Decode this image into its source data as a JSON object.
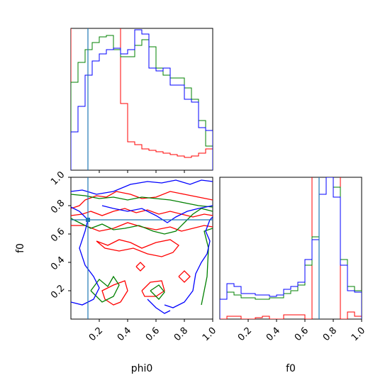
{
  "chart_data": {
    "type": "corner",
    "parameters": [
      "phi0",
      "f0"
    ],
    "colors": {
      "run_red": "#ff0000",
      "run_green": "#008000",
      "run_blue": "#0000ff",
      "truth_line": "#1f77b4"
    },
    "truth": {
      "phi0": 0.12,
      "f0": 0.7
    },
    "panels": {
      "phi0_hist": {
        "type": "step-histogram",
        "xlim": [
          0,
          1
        ],
        "bin_edges": [
          0.0,
          0.05,
          0.1,
          0.15,
          0.2,
          0.25,
          0.3,
          0.35,
          0.4,
          0.45,
          0.5,
          0.55,
          0.6,
          0.65,
          0.7,
          0.75,
          0.8,
          0.85,
          0.9,
          0.95,
          1.0
        ],
        "series": [
          {
            "color": "red",
            "values": [
              1.5,
              1.5,
              1.5,
              1.5,
              1.5,
              1.5,
              1.5,
              0.47,
              0.2,
              0.18,
              0.15,
              0.14,
              0.13,
              0.12,
              0.11,
              0.1,
              0.09,
              0.1,
              0.12,
              0.15
            ]
          },
          {
            "color": "green",
            "values": [
              0.62,
              0.76,
              0.85,
              0.9,
              0.94,
              0.95,
              0.85,
              0.8,
              0.8,
              0.88,
              0.92,
              0.87,
              0.72,
              0.67,
              0.65,
              0.65,
              0.58,
              0.5,
              0.35,
              0.17
            ]
          },
          {
            "color": "blue",
            "values": [
              0.27,
              0.45,
              0.67,
              0.77,
              0.82,
              0.85,
              0.86,
              0.82,
              0.85,
              0.99,
              0.96,
              0.72,
              0.7,
              0.72,
              0.6,
              0.6,
              0.5,
              0.48,
              0.3,
              0.28
            ]
          }
        ],
        "xticks": [
          0.2,
          0.4,
          0.6,
          0.8
        ]
      },
      "f0_hist": {
        "type": "step-histogram",
        "xlim": [
          0,
          1
        ],
        "bin_edges": [
          0.0,
          0.05,
          0.1,
          0.15,
          0.2,
          0.25,
          0.3,
          0.35,
          0.4,
          0.45,
          0.5,
          0.55,
          0.6,
          0.65,
          0.7,
          0.75,
          0.8,
          0.85,
          0.9,
          0.95,
          1.0
        ],
        "series": [
          {
            "color": "red",
            "values": [
              0.0,
              0.02,
              0.02,
              0.0,
              0.0,
              0.01,
              0.02,
              0.0,
              0.0,
              0.03,
              0.03,
              0.03,
              0.0,
              1.5,
              1.5,
              1.5,
              1.5,
              0.0,
              0.05,
              0.02
            ]
          },
          {
            "color": "green",
            "values": [
              0.14,
              0.19,
              0.17,
              0.15,
              0.15,
              0.14,
              0.14,
              0.15,
              0.15,
              0.18,
              0.2,
              0.24,
              0.38,
              0.58,
              1.06,
              1.1,
              0.93,
              0.42,
              0.23,
              0.2
            ]
          },
          {
            "color": "blue",
            "values": [
              0.14,
              0.25,
              0.23,
              0.18,
              0.18,
              0.17,
              0.17,
              0.16,
              0.17,
              0.21,
              0.23,
              0.26,
              0.42,
              0.56,
              0.88,
              1.0,
              0.86,
              0.38,
              0.2,
              0.19
            ]
          }
        ],
        "xticks": [
          0.2,
          0.4,
          0.6,
          0.8,
          1.0
        ],
        "xlabel": "f0"
      },
      "joint": {
        "type": "contour",
        "xlim": [
          0,
          1
        ],
        "ylim": [
          0,
          1
        ],
        "xlabel": "phi0",
        "ylabel": "f0",
        "xticks": [
          0.2,
          0.4,
          0.6,
          0.8,
          1.0
        ],
        "yticks": [
          0.2,
          0.4,
          0.6,
          0.8,
          1.0
        ],
        "contours": [
          {
            "color": "red",
            "path": [
              [
                0,
                0.78
              ],
              [
                0.06,
                0.8
              ],
              [
                0.1,
                0.84
              ],
              [
                0.18,
                0.87
              ],
              [
                0.25,
                0.86
              ],
              [
                0.32,
                0.9
              ],
              [
                0.42,
                0.88
              ],
              [
                0.5,
                0.85
              ],
              [
                0.6,
                0.86
              ],
              [
                0.7,
                0.9
              ],
              [
                0.8,
                0.88
              ],
              [
                0.9,
                0.86
              ],
              [
                1.0,
                0.84
              ]
            ]
          },
          {
            "color": "red",
            "path": [
              [
                0,
                0.73
              ],
              [
                0.08,
                0.74
              ],
              [
                0.14,
                0.76
              ],
              [
                0.22,
                0.73
              ],
              [
                0.3,
                0.76
              ],
              [
                0.38,
                0.78
              ],
              [
                0.46,
                0.75
              ],
              [
                0.54,
                0.77
              ],
              [
                0.62,
                0.74
              ],
              [
                0.7,
                0.76
              ],
              [
                0.78,
                0.74
              ],
              [
                0.86,
                0.72
              ],
              [
                0.94,
                0.74
              ],
              [
                1.0,
                0.73
              ]
            ]
          },
          {
            "color": "red",
            "path": [
              [
                0,
                0.66
              ],
              [
                0.1,
                0.66
              ],
              [
                0.2,
                0.62
              ],
              [
                0.3,
                0.64
              ],
              [
                0.4,
                0.68
              ],
              [
                0.5,
                0.65
              ],
              [
                0.6,
                0.63
              ],
              [
                0.7,
                0.65
              ],
              [
                0.78,
                0.62
              ],
              [
                0.86,
                0.64
              ],
              [
                0.94,
                0.66
              ],
              [
                1.0,
                0.65
              ]
            ]
          },
          {
            "color": "red",
            "path": [
              [
                0.18,
                0.55
              ],
              [
                0.26,
                0.52
              ],
              [
                0.34,
                0.56
              ],
              [
                0.42,
                0.54
              ],
              [
                0.5,
                0.5
              ],
              [
                0.6,
                0.54
              ],
              [
                0.7,
                0.56
              ],
              [
                0.76,
                0.52
              ],
              [
                0.72,
                0.47
              ],
              [
                0.64,
                0.44
              ],
              [
                0.54,
                0.46
              ],
              [
                0.44,
                0.5
              ],
              [
                0.34,
                0.48
              ],
              [
                0.24,
                0.5
              ],
              [
                0.18,
                0.55
              ]
            ]
          },
          {
            "color": "red",
            "path": [
              [
                0.35,
                0.12
              ],
              [
                0.4,
                0.2
              ],
              [
                0.38,
                0.27
              ],
              [
                0.3,
                0.24
              ],
              [
                0.22,
                0.2
              ],
              [
                0.24,
                0.14
              ],
              [
                0.3,
                0.1
              ],
              [
                0.35,
                0.12
              ]
            ]
          },
          {
            "color": "red",
            "path": [
              [
                0.5,
                0.2
              ],
              [
                0.56,
                0.26
              ],
              [
                0.64,
                0.27
              ],
              [
                0.66,
                0.2
              ],
              [
                0.6,
                0.16
              ],
              [
                0.52,
                0.16
              ],
              [
                0.5,
                0.2
              ]
            ]
          },
          {
            "color": "red",
            "path": [
              [
                0.76,
                0.3
              ],
              [
                0.8,
                0.26
              ],
              [
                0.84,
                0.3
              ],
              [
                0.8,
                0.34
              ],
              [
                0.76,
                0.3
              ]
            ]
          },
          {
            "color": "red",
            "path": [
              [
                0.46,
                0.37
              ],
              [
                0.49,
                0.34
              ],
              [
                0.52,
                0.37
              ],
              [
                0.49,
                0.4
              ],
              [
                0.46,
                0.37
              ]
            ]
          },
          {
            "color": "green",
            "path": [
              [
                0,
                0.88
              ],
              [
                0.1,
                0.87
              ],
              [
                0.2,
                0.85
              ],
              [
                0.3,
                0.86
              ],
              [
                0.4,
                0.84
              ],
              [
                0.5,
                0.86
              ],
              [
                0.6,
                0.85
              ],
              [
                0.7,
                0.84
              ],
              [
                0.8,
                0.82
              ],
              [
                0.9,
                0.8
              ],
              [
                1.0,
                0.79
              ]
            ]
          },
          {
            "color": "green",
            "path": [
              [
                0,
                0.71
              ],
              [
                0.06,
                0.68
              ],
              [
                0.14,
                0.64
              ],
              [
                0.22,
                0.67
              ],
              [
                0.3,
                0.63
              ],
              [
                0.38,
                0.64
              ],
              [
                0.48,
                0.66
              ],
              [
                0.58,
                0.62
              ],
              [
                0.66,
                0.6
              ],
              [
                0.74,
                0.62
              ],
              [
                0.8,
                0.68
              ],
              [
                0.86,
                0.74
              ],
              [
                0.92,
                0.78
              ],
              [
                1.0,
                0.76
              ]
            ]
          },
          {
            "color": "green",
            "path": [
              [
                0.14,
                0.2
              ],
              [
                0.2,
                0.28
              ],
              [
                0.26,
                0.23
              ],
              [
                0.3,
                0.3
              ],
              [
                0.34,
                0.24
              ],
              [
                0.3,
                0.16
              ],
              [
                0.22,
                0.12
              ],
              [
                0.14,
                0.2
              ]
            ]
          },
          {
            "color": "green",
            "path": [
              [
                0.56,
                0.2
              ],
              [
                0.62,
                0.24
              ],
              [
                0.66,
                0.19
              ],
              [
                0.62,
                0.14
              ],
              [
                0.56,
                0.2
              ]
            ]
          },
          {
            "color": "green",
            "path": [
              [
                0.92,
                0.1
              ],
              [
                0.96,
                0.3
              ],
              [
                0.97,
                0.5
              ],
              [
                0.94,
                0.62
              ],
              [
                1.0,
                0.64
              ]
            ]
          },
          {
            "color": "blue",
            "path": [
              [
                0,
                0.9
              ],
              [
                0.08,
                0.91
              ],
              [
                0.18,
                0.88
              ],
              [
                0.3,
                0.9
              ],
              [
                0.42,
                0.95
              ],
              [
                0.54,
                0.97
              ],
              [
                0.64,
                0.96
              ],
              [
                0.74,
                0.98
              ],
              [
                0.84,
                0.95
              ],
              [
                0.92,
                0.98
              ],
              [
                1.0,
                0.97
              ]
            ]
          },
          {
            "color": "blue",
            "path": [
              [
                0,
                0.79
              ],
              [
                0.06,
                0.76
              ],
              [
                0.12,
                0.7
              ],
              [
                0.1,
                0.62
              ],
              [
                0.06,
                0.5
              ],
              [
                0.1,
                0.38
              ],
              [
                0.16,
                0.3
              ],
              [
                0.2,
                0.22
              ],
              [
                0.16,
                0.14
              ],
              [
                0.08,
                0.1
              ],
              [
                0.0,
                0.12
              ]
            ]
          },
          {
            "color": "blue",
            "path": [
              [
                0.22,
                0.8
              ],
              [
                0.3,
                0.78
              ],
              [
                0.4,
                0.76
              ],
              [
                0.5,
                0.78
              ],
              [
                0.6,
                0.73
              ],
              [
                0.68,
                0.68
              ],
              [
                0.74,
                0.72
              ],
              [
                0.82,
                0.76
              ],
              [
                0.9,
                0.78
              ],
              [
                1.0,
                0.8
              ]
            ]
          },
          {
            "color": "blue",
            "path": [
              [
                0.66,
                0.1
              ],
              [
                0.72,
                0.08
              ],
              [
                0.8,
                0.12
              ],
              [
                0.86,
                0.2
              ],
              [
                0.88,
                0.32
              ],
              [
                0.92,
                0.4
              ],
              [
                0.96,
                0.46
              ],
              [
                0.98,
                0.55
              ],
              [
                0.95,
                0.62
              ],
              [
                0.98,
                0.7
              ],
              [
                1.0,
                0.72
              ]
            ]
          },
          {
            "color": "blue",
            "path": [
              [
                0.54,
                0.14
              ],
              [
                0.6,
                0.08
              ],
              [
                0.66,
                0.04
              ],
              [
                0.7,
                0.06
              ]
            ]
          }
        ]
      }
    }
  }
}
